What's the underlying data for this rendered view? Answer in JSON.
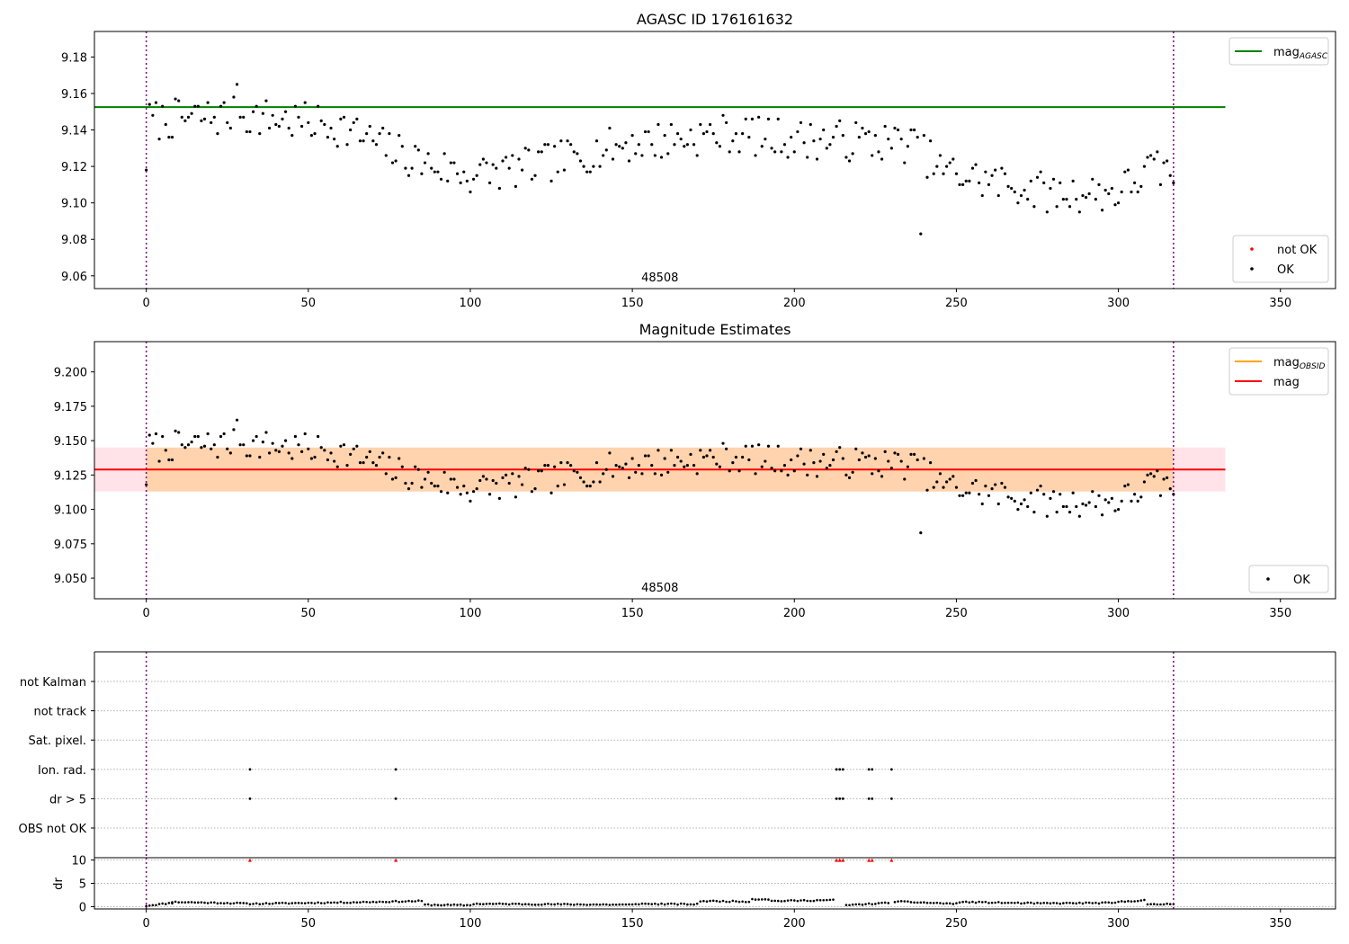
{
  "figure": {
    "obsid_label": "48508",
    "window_start": 0,
    "window_end": 317
  },
  "chart_data": [
    {
      "type": "scatter",
      "title": "AGASC ID 176161632",
      "xlabel": "",
      "ylabel": "",
      "xlim": [
        -16,
        367
      ],
      "ylim": [
        9.053,
        9.194
      ],
      "xticks": [
        0,
        50,
        100,
        150,
        200,
        250,
        300,
        350
      ],
      "yticks": [
        9.06,
        9.08,
        9.1,
        9.12,
        9.14,
        9.16,
        9.18
      ],
      "y_decimals": 2,
      "grid": false,
      "hlines": [
        {
          "name": "mag_AGASC",
          "y": 9.1525,
          "x_end": 333,
          "color": "#008000"
        }
      ],
      "vlines": [
        {
          "x": 0,
          "color": "#800080"
        },
        {
          "x": 317,
          "color": "#800080"
        }
      ],
      "series": [
        {
          "name": "not OK",
          "color": "#ff0000",
          "points": []
        },
        {
          "name": "OK",
          "color": "#000000",
          "seed": 7
        }
      ],
      "legend": [
        {
          "position": "upper right",
          "entries": [
            {
              "kind": "line",
              "color": "#008000",
              "label": "mag",
              "sub": "AGASC"
            }
          ]
        },
        {
          "position": "lower right",
          "entries": [
            {
              "kind": "dot",
              "color": "#ff0000",
              "label": "not OK"
            },
            {
              "kind": "dot",
              "color": "#000000",
              "label": "OK"
            }
          ]
        }
      ],
      "annotation": "48508"
    },
    {
      "type": "scatter",
      "title": "Magnitude Estimates",
      "xlabel": "",
      "ylabel": "",
      "xlim": [
        -16,
        367
      ],
      "ylim": [
        9.035,
        9.222
      ],
      "xticks": [
        0,
        50,
        100,
        150,
        200,
        250,
        300,
        350
      ],
      "yticks": [
        9.05,
        9.075,
        9.1,
        9.125,
        9.15,
        9.175,
        9.2
      ],
      "y_decimals": 3,
      "grid": false,
      "bands": [
        {
          "y_low": 9.113,
          "y_high": 9.145,
          "x_start": -16,
          "x_end": 333,
          "color": "#ffc0cb",
          "opacity": 0.45
        },
        {
          "y_low": 9.113,
          "y_high": 9.145,
          "x_start": 0,
          "x_end": 317,
          "color": "#ffa500",
          "opacity": 0.25
        }
      ],
      "hlines": [
        {
          "name": "mag",
          "y": 9.129,
          "x_end": 333,
          "color": "#ff0000"
        }
      ],
      "vlines": [
        {
          "x": 0,
          "color": "#800080"
        },
        {
          "x": 317,
          "color": "#800080"
        }
      ],
      "series": [
        {
          "name": "OK",
          "color": "#000000",
          "seed": 7
        }
      ],
      "legend": [
        {
          "position": "upper right",
          "entries": [
            {
              "kind": "line",
              "color": "#ffa500",
              "label": "mag",
              "sub": "OBSID"
            },
            {
              "kind": "line",
              "color": "#ff0000",
              "label": "mag"
            }
          ]
        },
        {
          "position": "lower right",
          "entries": [
            {
              "kind": "dot",
              "color": "#000000",
              "label": "OK"
            }
          ]
        }
      ],
      "annotation": "48508"
    },
    {
      "type": "scatter",
      "title": "",
      "xlabel": "",
      "ylabel": "",
      "xlim": [
        -16,
        367
      ],
      "categories": [
        "not Kalman",
        "not track",
        "Sat. pixel.",
        "Ion. rad.",
        "dr > 5",
        "OBS not OK"
      ],
      "grid": true,
      "flag_points": {
        "Ion. rad.": [
          32,
          77,
          213,
          214,
          215,
          223,
          224,
          230
        ],
        "dr > 5": [
          32,
          77,
          213,
          214,
          215,
          223,
          224,
          230
        ]
      },
      "vlines": [
        {
          "x": 0,
          "color": "#800080"
        },
        {
          "x": 317,
          "color": "#800080"
        }
      ]
    },
    {
      "type": "scatter",
      "title": "",
      "xlabel": "",
      "ylabel": "dr",
      "xlim": [
        -16,
        367
      ],
      "ylim": [
        -0.5,
        10.5
      ],
      "xticks": [
        0,
        50,
        100,
        150,
        200,
        250,
        300,
        350
      ],
      "yticks": [
        0,
        5,
        10
      ],
      "clipped_points": [
        32,
        77,
        213,
        214,
        215,
        223,
        224,
        230
      ],
      "clip_value": 10,
      "segments": [
        {
          "from": 0,
          "to": 8,
          "start": 0.2,
          "end": 0.8
        },
        {
          "from": 8,
          "to": 30,
          "start": 1.0,
          "end": 0.7
        },
        {
          "from": 31,
          "to": 60,
          "start": 0.6,
          "end": 0.9
        },
        {
          "from": 61,
          "to": 85,
          "start": 0.9,
          "end": 1.2
        },
        {
          "from": 86,
          "to": 100,
          "start": 0.4,
          "end": 0.3
        },
        {
          "from": 101,
          "to": 150,
          "start": 0.6,
          "end": 0.4
        },
        {
          "from": 151,
          "to": 170,
          "start": 0.6,
          "end": 0.5
        },
        {
          "from": 171,
          "to": 186,
          "start": 1.2,
          "end": 1.1
        },
        {
          "from": 187,
          "to": 192,
          "start": 1.6,
          "end": 1.6
        },
        {
          "from": 193,
          "to": 212,
          "start": 1.2,
          "end": 1.4
        },
        {
          "from": 216,
          "to": 229,
          "start": 0.3,
          "end": 0.8
        },
        {
          "from": 231,
          "to": 250,
          "start": 1.1,
          "end": 0.6
        },
        {
          "from": 251,
          "to": 275,
          "start": 1.0,
          "end": 0.7
        },
        {
          "from": 276,
          "to": 299,
          "start": 0.7,
          "end": 0.8
        },
        {
          "from": 300,
          "to": 308,
          "start": 1.0,
          "end": 1.4
        },
        {
          "from": 309,
          "to": 317,
          "start": 0.4,
          "end": 0.6
        }
      ],
      "vlines": [
        {
          "x": 0,
          "color": "#800080"
        },
        {
          "x": 317,
          "color": "#800080"
        }
      ]
    }
  ]
}
